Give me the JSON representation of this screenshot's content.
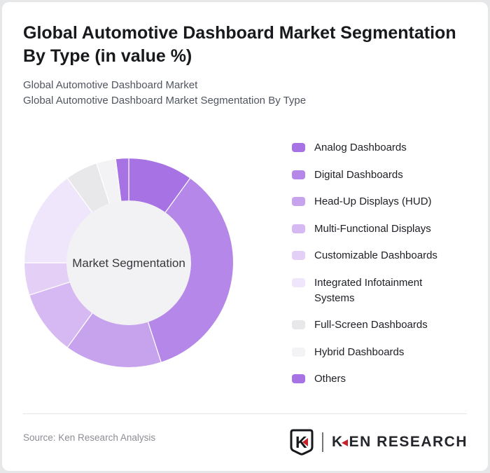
{
  "header": {
    "title": "Global Automotive Dashboard Market Segmentation By Type (in value %)",
    "subtitle_line1": "Global Automotive Dashboard Market",
    "subtitle_line2": "Global Automotive Dashboard Market Segmentation By Type"
  },
  "chart_data": {
    "type": "pie",
    "subtype": "donut",
    "title": "Global Automotive Dashboard Market Segmentation By Type (in value %)",
    "center_label": "Market Segmentation",
    "unit": "% of value",
    "start_angle_deg": 0,
    "direction": "clockwise",
    "inner_radius_ratio": 0.59,
    "legend_position": "right",
    "center_fill": "#f2f1f3",
    "slice_border_color": "#ffffff",
    "categories": [
      "Analog Dashboards",
      "Digital Dashboards",
      "Head-Up Displays (HUD)",
      "Multi-Functional Displays",
      "Customizable Dashboards",
      "Integrated Infotainment Systems",
      "Full-Screen Dashboards",
      "Hybrid Dashboards",
      "Others"
    ],
    "values": [
      10,
      35,
      15,
      10,
      5,
      15,
      5,
      3,
      2
    ],
    "colors": [
      "#a772e3",
      "#b587e8",
      "#c7a3ee",
      "#d6b9f2",
      "#e4d0f6",
      "#f0e6fb",
      "#e8e7e9",
      "#f3f2f4",
      "#a772e3"
    ]
  },
  "footer": {
    "source": "Source: Ken Research Analysis",
    "logo": {
      "badge_letter": "K",
      "wordmark_first": "K",
      "wordmark_rest": "EN RESEARCH",
      "accent_red": "#c5232b",
      "text_color": "#24262b"
    }
  }
}
